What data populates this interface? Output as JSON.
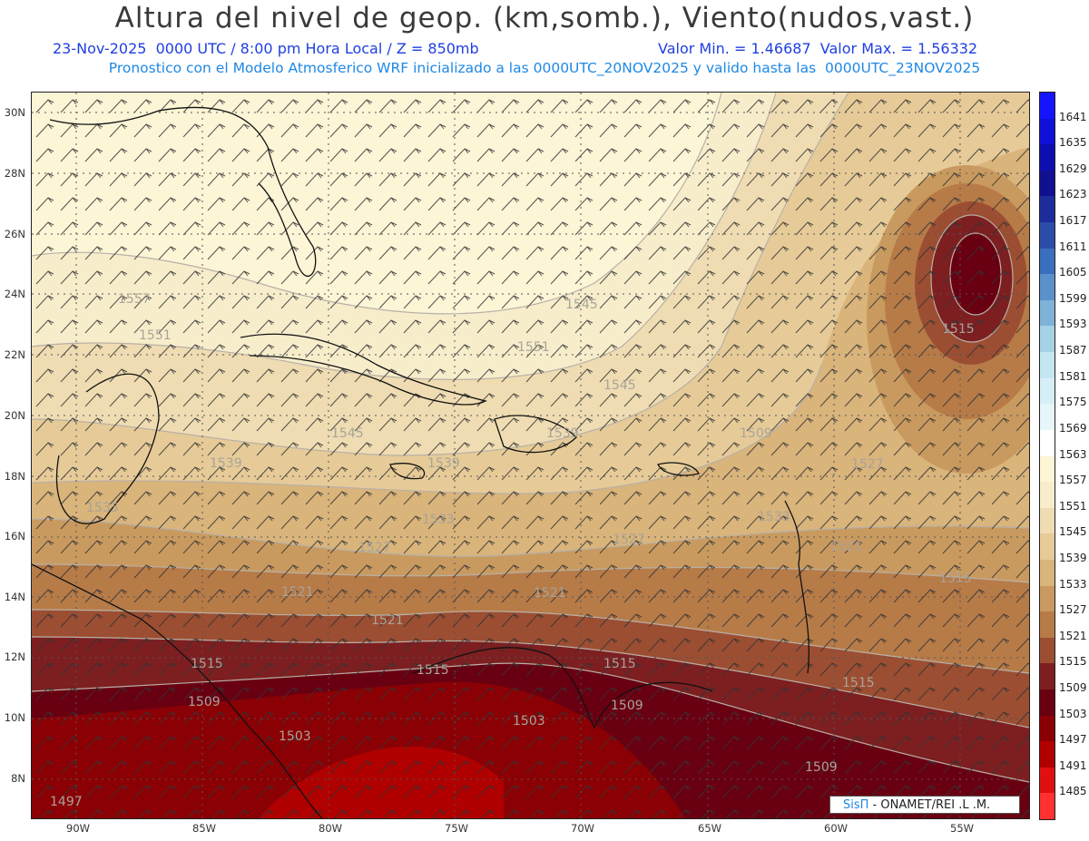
{
  "title": "Altura del nivel de geop. (km,somb.), Viento(nudos,vast.)",
  "subtitle_date": "23-Nov-2025  0000 UTC / 8:00 pm Hora Local / Z = 850mb",
  "subtitle_values": "Valor Min. = 1.46687  Valor Max. = 1.56332",
  "subtitle_model": "Pronostico con el Modelo Atmosferico WRF inicializado a las 0000UTC_20NOV2025 y valido hasta las  0000UTC_23NOV2025",
  "lat_labels": [
    "30N",
    "28N",
    "26N",
    "24N",
    "22N",
    "20N",
    "18N",
    "16N",
    "14N",
    "12N",
    "10N",
    "8N"
  ],
  "lon_labels": [
    "90W",
    "85W",
    "80W",
    "75W",
    "70W",
    "65W",
    "60W",
    "55W"
  ],
  "colorbar": {
    "levels": [
      "1641",
      "1635",
      "1629",
      "1623",
      "1617",
      "1611",
      "1605",
      "1599",
      "1593",
      "1587",
      "1581",
      "1575",
      "1569",
      "1563",
      "1557",
      "1551",
      "1545",
      "1539",
      "1533",
      "1527",
      "1521",
      "1515",
      "1509",
      "1503",
      "1497",
      "1491",
      "1485"
    ],
    "colors": [
      "#1414ff",
      "#1010d8",
      "#0e0eb0",
      "#101090",
      "#1c2c9a",
      "#2c4ea8",
      "#3a6fbf",
      "#5a91cb",
      "#7eb2d8",
      "#a6d2e6",
      "#c4e6f0",
      "#d6eff6",
      "#e6f6fa",
      "#ffffff",
      "#fcf5d6",
      "#f7edcb",
      "#efdcb2",
      "#e6cb98",
      "#d9b47b",
      "#c99a5f",
      "#b77b48",
      "#9c4e32",
      "#7d1f21",
      "#690012",
      "#8b0004",
      "#b00000",
      "#e01010"
    ]
  },
  "contour_labels": [
    "1557",
    "1551",
    "1545",
    "1539",
    "1533",
    "1527",
    "1521",
    "1515",
    "1509",
    "1503",
    "1497",
    "1551",
    "1545",
    "1539",
    "1539",
    "1533",
    "1527",
    "1521",
    "1521",
    "1515",
    "1515",
    "1509",
    "1509",
    "1503",
    "1515",
    "1509",
    "1515",
    "1527",
    "1533",
    "1545",
    "1515",
    "1521"
  ],
  "credit": {
    "brand": "SisΠ",
    "org": " - ONAMET/REI .L .M."
  },
  "colors": {
    "title": "#3a3a3a",
    "subtitle_dark": "#1f3fe0",
    "subtitle_light": "#1e88e5"
  }
}
